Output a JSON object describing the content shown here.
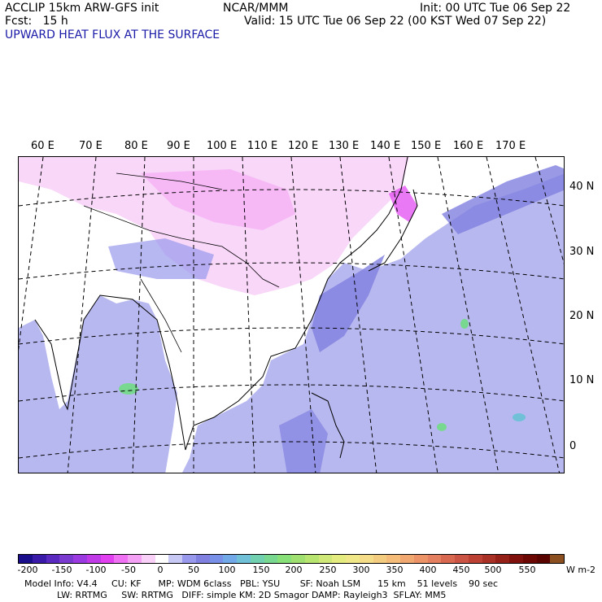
{
  "header": {
    "line1_left": "ACCLIP 15km ARW-GFS init",
    "line1_center": "NCAR/MMM",
    "line1_right": "Init: 00 UTC Tue 06 Sep 22",
    "line2_left": "Fcst:   15 h",
    "line2_right": "Valid: 15 UTC Tue 06 Sep 22 (00 KST Wed 07 Sep 22)",
    "field_title": "UPWARD HEAT FLUX AT THE SURFACE"
  },
  "map": {
    "lon_labels": [
      "60 E",
      "70 E",
      "80 E",
      "90 E",
      "100 E",
      "110 E",
      "120 E",
      "130 E",
      "140 E",
      "150 E",
      "160 E",
      "170 E"
    ],
    "lat_labels": [
      "40 N",
      "30 N",
      "20 N",
      "10 N",
      "0"
    ]
  },
  "colorbar": {
    "tick_labels": [
      "-200",
      "-150",
      "-100",
      "-50",
      "0",
      "50",
      "100",
      "150",
      "200",
      "250",
      "300",
      "350",
      "400",
      "450",
      "500",
      "550"
    ],
    "unit": "W m-2",
    "colors": [
      "#1a0e8c",
      "#3a1aa8",
      "#5a2ac0",
      "#7a3ad0",
      "#9a3ae0",
      "#c03ae8",
      "#e040f0",
      "#f070f4",
      "#f4a0f4",
      "#f8d0f8",
      "#ffffff",
      "#c8c8f4",
      "#9898ec",
      "#8080e0",
      "#7890e8",
      "#70a8e8",
      "#70c0d8",
      "#70d0b0",
      "#78d890",
      "#88e078",
      "#a0e070",
      "#b8e470",
      "#d0e878",
      "#e4ec80",
      "#f0e888",
      "#f4dc88",
      "#f4cc80",
      "#f4bc78",
      "#f0a870",
      "#ec9468",
      "#e48060",
      "#d86850",
      "#cc5444",
      "#bc4034",
      "#a83024",
      "#942018",
      "#80100c",
      "#6c0804",
      "#5a0400",
      "#8c5020"
    ]
  },
  "footer": {
    "line1": "Model Info: V4.4     CU: KF      MP: WDM 6class   PBL: YSU       SF: Noah LSM      15 km    51 levels    90 sec",
    "line2": "LW: RRTMG     SW: RRTMG   DIFF: simple KM: 2D Smagor DAMP: Rayleigh3  SFLAY: MM5"
  }
}
